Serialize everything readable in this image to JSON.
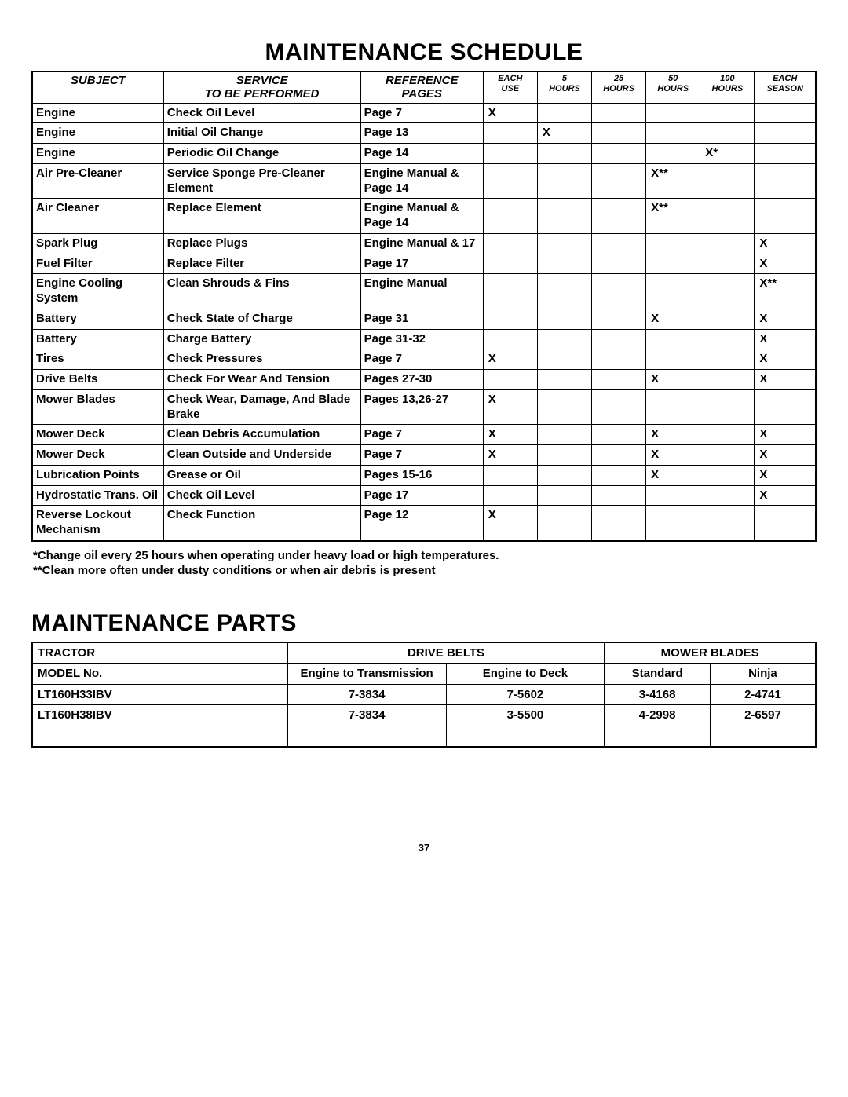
{
  "titles": {
    "schedule": "MAINTENANCE SCHEDULE",
    "parts": "MAINTENANCE PARTS"
  },
  "schedule": {
    "headers": {
      "subject": "SUBJECT",
      "service": "SERVICE\nTO BE PERFORMED",
      "reference": "REFERENCE\nPAGES",
      "int1": "EACH\nUSE",
      "int2": "5\nHOURS",
      "int3": "25\nHOURS",
      "int4": "50\nHOURS",
      "int5": "100\nHOURS",
      "int6": "EACH\nSEASON"
    },
    "rows": [
      {
        "subject": "Engine",
        "service": "Check Oil Level",
        "ref": "Page 7",
        "marks": [
          "X",
          "",
          "",
          "",
          "",
          ""
        ]
      },
      {
        "subject": "Engine",
        "service": "Initial Oil Change",
        "ref": "Page 13",
        "marks": [
          "",
          "X",
          "",
          "",
          "",
          ""
        ]
      },
      {
        "subject": "Engine",
        "service": "Periodic Oil Change",
        "ref": "Page 14",
        "marks": [
          "",
          "",
          "",
          "",
          "X*",
          ""
        ]
      },
      {
        "subject": "Air Pre-Cleaner",
        "service": "Service Sponge Pre-Cleaner Element",
        "ref": "Engine Manual & Page 14",
        "marks": [
          "",
          "",
          "",
          "X**",
          "",
          ""
        ]
      },
      {
        "subject": "Air Cleaner",
        "service": "Replace Element",
        "ref": "Engine Manual & Page 14",
        "marks": [
          "",
          "",
          "",
          "X**",
          "",
          ""
        ]
      },
      {
        "subject": "Spark Plug",
        "service": "Replace Plugs",
        "ref": "Engine Manual & 17",
        "marks": [
          "",
          "",
          "",
          "",
          "",
          "X"
        ]
      },
      {
        "subject": "Fuel Filter",
        "service": "Replace Filter",
        "ref": "Page 17",
        "marks": [
          "",
          "",
          "",
          "",
          "",
          "X"
        ]
      },
      {
        "subject": "Engine Cooling System",
        "service": "Clean Shrouds & Fins",
        "ref": "Engine Manual",
        "marks": [
          "",
          "",
          "",
          "",
          "",
          "X**"
        ]
      },
      {
        "subject": "Battery",
        "service": "Check State of Charge",
        "ref": "Page 31",
        "marks": [
          "",
          "",
          "",
          "X",
          "",
          "X"
        ]
      },
      {
        "subject": "Battery",
        "service": "Charge Battery",
        "ref": "Page 31-32",
        "marks": [
          "",
          "",
          "",
          "",
          "",
          "X"
        ]
      },
      {
        "subject": "Tires",
        "service": "Check Pressures",
        "ref": "Page 7",
        "marks": [
          "X",
          "",
          "",
          "",
          "",
          "X"
        ]
      },
      {
        "subject": "Drive Belts",
        "service": "Check For Wear And Tension",
        "ref": "Pages 27-30",
        "marks": [
          "",
          "",
          "",
          "X",
          "",
          "X"
        ]
      },
      {
        "subject": "Mower Blades",
        "service": "Check Wear, Damage, And Blade Brake",
        "ref": "Pages 13,26-27",
        "marks": [
          "X",
          "",
          "",
          "",
          "",
          ""
        ]
      },
      {
        "subject": "Mower Deck",
        "service": "Clean Debris Accumulation",
        "ref": "Page 7",
        "marks": [
          "X",
          "",
          "",
          "X",
          "",
          "X"
        ]
      },
      {
        "subject": "Mower Deck",
        "service": "Clean Outside and Underside",
        "ref": "Page 7",
        "marks": [
          "X",
          "",
          "",
          "X",
          "",
          "X"
        ]
      },
      {
        "subject": "Lubrication Points",
        "service": "Grease or Oil",
        "ref": "Pages 15-16",
        "marks": [
          "",
          "",
          "",
          "X",
          "",
          "X"
        ]
      },
      {
        "subject": "Hydrostatic Trans. Oil",
        "service": "Check Oil Level",
        "ref": "Page 17",
        "marks": [
          "",
          "",
          "",
          "",
          "",
          "X"
        ]
      },
      {
        "subject": "Reverse Lockout Mechanism",
        "service": "Check Function",
        "ref": "Page 12",
        "marks": [
          "X",
          "",
          "",
          "",
          "",
          ""
        ]
      }
    ],
    "notes": {
      "n1": "*Change oil every 25 hours when operating under heavy load or high temperatures.",
      "n2": "**Clean more often under dusty conditions or when air debris is present"
    }
  },
  "parts": {
    "headers": {
      "tractor": "TRACTOR",
      "model": "MODEL No.",
      "belts": "DRIVE BELTS",
      "b1": "Engine to Transmission",
      "b2": "Engine to Deck",
      "blades": "MOWER BLADES",
      "m1": "Standard",
      "m2": "Ninja"
    },
    "rows": [
      {
        "model": "LT160H33IBV",
        "b1": "7-3834",
        "b2": "7-5602",
        "m1": "3-4168",
        "m2": "2-4741"
      },
      {
        "model": "LT160H38IBV",
        "b1": "7-3834",
        "b2": "3-5500",
        "m1": "4-2998",
        "m2": "2-6597"
      }
    ]
  },
  "page_number": "37"
}
